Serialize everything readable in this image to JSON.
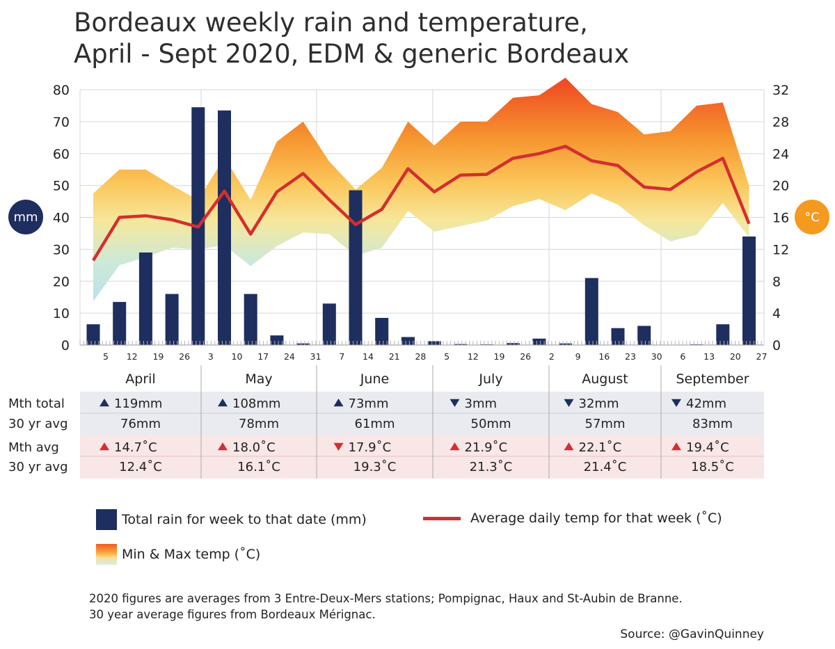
{
  "title_line1": "Bordeaux weekly rain and temperature,",
  "title_line2": "April - Sept 2020, EDM & generic Bordeaux",
  "badges": {
    "left": "mm",
    "right": "°C"
  },
  "colors": {
    "bar": "#1e2e5e",
    "line": "#d32f2f",
    "up": "#1e2e5e",
    "down": "#d32f2f",
    "rain_row": "#e9ebf0",
    "temp_row": "#f9e6e6"
  },
  "chart_data": {
    "type": "bar",
    "title": "Bordeaux weekly rain and temperature, April - Sept 2020, EDM & generic Bordeaux",
    "x_tick_labels": [
      "5",
      "12",
      "19",
      "26",
      "3",
      "10",
      "17",
      "24",
      "31",
      "7",
      "14",
      "21",
      "28",
      "5",
      "12",
      "19",
      "26",
      "2",
      "9",
      "16",
      "23",
      "30",
      "6",
      "13",
      "20",
      "27"
    ],
    "y_left_ticks": [
      "0",
      "10",
      "20",
      "30",
      "40",
      "50",
      "60",
      "70",
      "80"
    ],
    "y_right_ticks": [
      "0",
      "4",
      "8",
      "12",
      "16",
      "20",
      "24",
      "28",
      "32"
    ],
    "ylim_left": [
      0,
      80
    ],
    "ylim_right": [
      0,
      32
    ],
    "grid": true,
    "series": [
      {
        "name": "Total rain for week to that date (mm)",
        "type": "bar",
        "axis": "left",
        "values": [
          6.5,
          13.5,
          29,
          16,
          74.5,
          73.5,
          16,
          3,
          0.5,
          13,
          48.5,
          8.5,
          2.5,
          1.2,
          0.3,
          0.2,
          0.6,
          2,
          0.5,
          21,
          5.3,
          6,
          0.1,
          0.2,
          6.5,
          34
        ]
      },
      {
        "name": "Average daily temp for that week (˚C)",
        "type": "line",
        "axis": "right",
        "values": [
          10.6,
          16,
          16.2,
          15.7,
          14.8,
          19.3,
          13.9,
          19.2,
          21.5,
          18.2,
          15.1,
          17,
          22.1,
          19.2,
          21.3,
          21.4,
          23.4,
          24,
          24.9,
          23.1,
          22.5,
          19.8,
          19.5,
          21.7,
          23.4,
          15.2
        ]
      },
      {
        "name": "Min & Max temp (˚C)",
        "type": "area",
        "axis": "right",
        "min": [
          5.5,
          10,
          11,
          12.2,
          12,
          12.5,
          9.9,
          12.4,
          14.1,
          13.9,
          11.2,
          12.2,
          16.8,
          14.2,
          14.9,
          15.6,
          17.4,
          18.3,
          16.9,
          19,
          17.6,
          15,
          13,
          13.8,
          17.8,
          13.5
        ],
        "max": [
          19,
          22,
          22,
          20,
          18.2,
          23.5,
          18.2,
          25.5,
          28,
          23,
          19.5,
          22.2,
          28,
          25,
          28,
          28,
          31,
          31.3,
          33.5,
          30.2,
          29.2,
          26.4,
          26.8,
          30,
          30.4,
          20
        ]
      }
    ]
  },
  "months": [
    "April",
    "May",
    "June",
    "July",
    "August",
    "September"
  ],
  "table": {
    "row_labels": [
      "Mth total",
      "30 yr avg",
      "Mth avg",
      "30 yr avg"
    ],
    "mth_total": [
      {
        "dir": "up",
        "value": "119mm"
      },
      {
        "dir": "up",
        "value": "108mm"
      },
      {
        "dir": "up",
        "value": "73mm"
      },
      {
        "dir": "down",
        "value": "3mm"
      },
      {
        "dir": "down",
        "value": "32mm"
      },
      {
        "dir": "down",
        "value": "42mm"
      }
    ],
    "rain_30yr": [
      "76mm",
      "78mm",
      "61mm",
      "50mm",
      "57mm",
      "83mm"
    ],
    "mth_avg": [
      {
        "dir": "up",
        "value": "14.7˚C"
      },
      {
        "dir": "up",
        "value": "18.0˚C"
      },
      {
        "dir": "down",
        "value": "17.9˚C"
      },
      {
        "dir": "up",
        "value": "21.9˚C"
      },
      {
        "dir": "up",
        "value": "22.1˚C"
      },
      {
        "dir": "up",
        "value": "19.4˚C"
      }
    ],
    "temp_30yr": [
      "12.4˚C",
      "16.1˚C",
      "19.3˚C",
      "21.3˚C",
      "21.4˚C",
      "18.5˚C"
    ]
  },
  "legend": {
    "bars": "Total rain for week to that date (mm)",
    "line": "Average daily temp for that week (˚C)",
    "area": "Min & Max temp (˚C)"
  },
  "notes": {
    "line1": "2020 figures are averages from 3 Entre-Deux-Mers stations; Pompignac, Haux and St-Aubin de Branne.",
    "line2": "30 year average figures from Bordeaux Mérignac."
  },
  "source": "Source: @GavinQuinney"
}
